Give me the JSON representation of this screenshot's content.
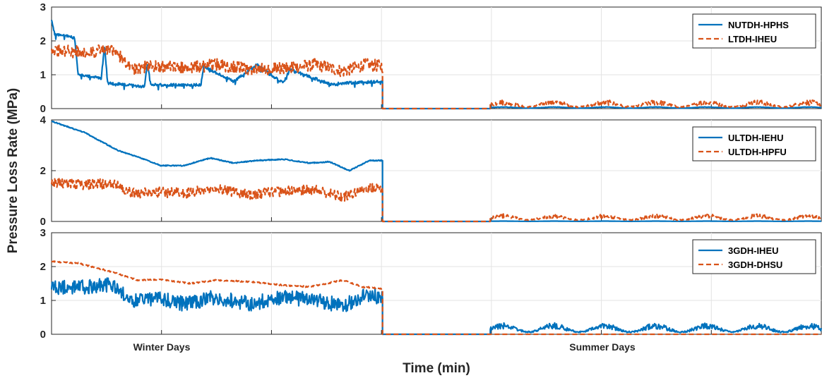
{
  "colors": {
    "series1": "#0072BD",
    "series2": "#D95319"
  },
  "chart_data": {
    "type": "line",
    "xlabel": "Time (min)",
    "ylabel": "Pressure Loss Rate (MPa)",
    "xcategories": [
      "Winter Days",
      "Summer Days"
    ],
    "grid": true,
    "legend_position": "top-right",
    "panels": [
      {
        "ylim": [
          0,
          3
        ],
        "yticks": [
          0,
          1,
          2,
          3
        ],
        "series": [
          {
            "name": "NUTDH-HPHS",
            "style": "solid",
            "color": "#0072BD",
            "winter_anchors": [
              [
                0,
                2.6
              ],
              [
                0.01,
                2.2
              ],
              [
                0.07,
                2.1
              ],
              [
                0.08,
                1.0
              ],
              [
                0.15,
                0.9
              ],
              [
                0.16,
                1.85
              ],
              [
                0.17,
                0.75
              ],
              [
                0.28,
                0.65
              ],
              [
                0.29,
                1.3
              ],
              [
                0.3,
                0.7
              ],
              [
                0.45,
                0.7
              ],
              [
                0.46,
                1.25
              ],
              [
                0.55,
                0.8
              ],
              [
                0.62,
                1.3
              ],
              [
                0.7,
                0.75
              ],
              [
                0.72,
                1.15
              ],
              [
                0.85,
                0.7
              ],
              [
                0.87,
                0.75
              ],
              [
                1.0,
                0.8
              ]
            ],
            "winter_noise": 0.04,
            "winter_drops": 0.08,
            "summer_base": 0.03,
            "summer_noise": 0.01
          },
          {
            "name": "LTDH-IHEU",
            "style": "dashed",
            "color": "#D95319",
            "winter_anchors": [
              [
                0,
                1.75
              ],
              [
                0.1,
                1.65
              ],
              [
                0.18,
                1.75
              ],
              [
                0.25,
                1.2
              ],
              [
                0.33,
                1.25
              ],
              [
                0.4,
                1.2
              ],
              [
                0.5,
                1.3
              ],
              [
                0.6,
                1.15
              ],
              [
                0.7,
                1.2
              ],
              [
                0.8,
                1.3
              ],
              [
                0.88,
                1.1
              ],
              [
                0.95,
                1.3
              ],
              [
                1.0,
                1.25
              ]
            ],
            "winter_noise": 0.18,
            "winter_drops": 0,
            "summer_base": 0.08,
            "summer_noise": 0.12
          }
        ]
      },
      {
        "ylim": [
          0,
          4
        ],
        "yticks": [
          0,
          2,
          4
        ],
        "series": [
          {
            "name": "ULTDH-IEHU",
            "style": "solid",
            "color": "#0072BD",
            "winter_anchors": [
              [
                0,
                3.95
              ],
              [
                0.1,
                3.5
              ],
              [
                0.2,
                2.8
              ],
              [
                0.27,
                2.5
              ],
              [
                0.33,
                2.2
              ],
              [
                0.4,
                2.2
              ],
              [
                0.48,
                2.5
              ],
              [
                0.55,
                2.3
              ],
              [
                0.62,
                2.4
              ],
              [
                0.7,
                2.45
              ],
              [
                0.78,
                2.3
              ],
              [
                0.84,
                2.35
              ],
              [
                0.9,
                2.0
              ],
              [
                0.96,
                2.4
              ],
              [
                1.0,
                2.4
              ]
            ],
            "winter_noise": 0.02,
            "winter_drops": 0,
            "summer_base": 0.01,
            "summer_noise": 0.0
          },
          {
            "name": "ULTDH-HPFU",
            "style": "dashed",
            "color": "#D95319",
            "winter_anchors": [
              [
                0,
                1.5
              ],
              [
                0.1,
                1.45
              ],
              [
                0.18,
                1.5
              ],
              [
                0.25,
                1.1
              ],
              [
                0.33,
                1.15
              ],
              [
                0.4,
                1.1
              ],
              [
                0.5,
                1.3
              ],
              [
                0.6,
                1.05
              ],
              [
                0.7,
                1.2
              ],
              [
                0.8,
                1.25
              ],
              [
                0.88,
                0.95
              ],
              [
                0.95,
                1.3
              ],
              [
                1.0,
                1.3
              ]
            ],
            "winter_noise": 0.2,
            "winter_drops": 0,
            "summer_base": 0.1,
            "summer_noise": 0.13
          }
        ]
      },
      {
        "ylim": [
          0,
          3
        ],
        "yticks": [
          0,
          1,
          2,
          3
        ],
        "series": [
          {
            "name": "3GDH-IHEU",
            "style": "solid",
            "color": "#0072BD",
            "winter_anchors": [
              [
                0,
                1.35
              ],
              [
                0.1,
                1.4
              ],
              [
                0.18,
                1.45
              ],
              [
                0.25,
                1.0
              ],
              [
                0.33,
                1.05
              ],
              [
                0.4,
                0.9
              ],
              [
                0.5,
                1.1
              ],
              [
                0.6,
                0.9
              ],
              [
                0.7,
                1.1
              ],
              [
                0.8,
                1.0
              ],
              [
                0.88,
                0.85
              ],
              [
                0.95,
                1.15
              ],
              [
                1.0,
                1.1
              ]
            ],
            "winter_noise": 0.22,
            "winter_drops": 0,
            "summer_base": 0.12,
            "summer_noise": 0.14
          },
          {
            "name": "3GDH-DHSU",
            "style": "dashed",
            "color": "#D95319",
            "winter_anchors": [
              [
                0,
                2.15
              ],
              [
                0.08,
                2.1
              ],
              [
                0.18,
                1.85
              ],
              [
                0.26,
                1.6
              ],
              [
                0.33,
                1.62
              ],
              [
                0.42,
                1.5
              ],
              [
                0.5,
                1.6
              ],
              [
                0.6,
                1.55
              ],
              [
                0.7,
                1.45
              ],
              [
                0.78,
                1.4
              ],
              [
                0.88,
                1.6
              ],
              [
                0.94,
                1.4
              ],
              [
                1.0,
                1.35
              ]
            ],
            "winter_noise": 0.02,
            "winter_drops": 0,
            "summer_base": 0.0,
            "summer_noise": 0.0
          }
        ]
      }
    ]
  }
}
